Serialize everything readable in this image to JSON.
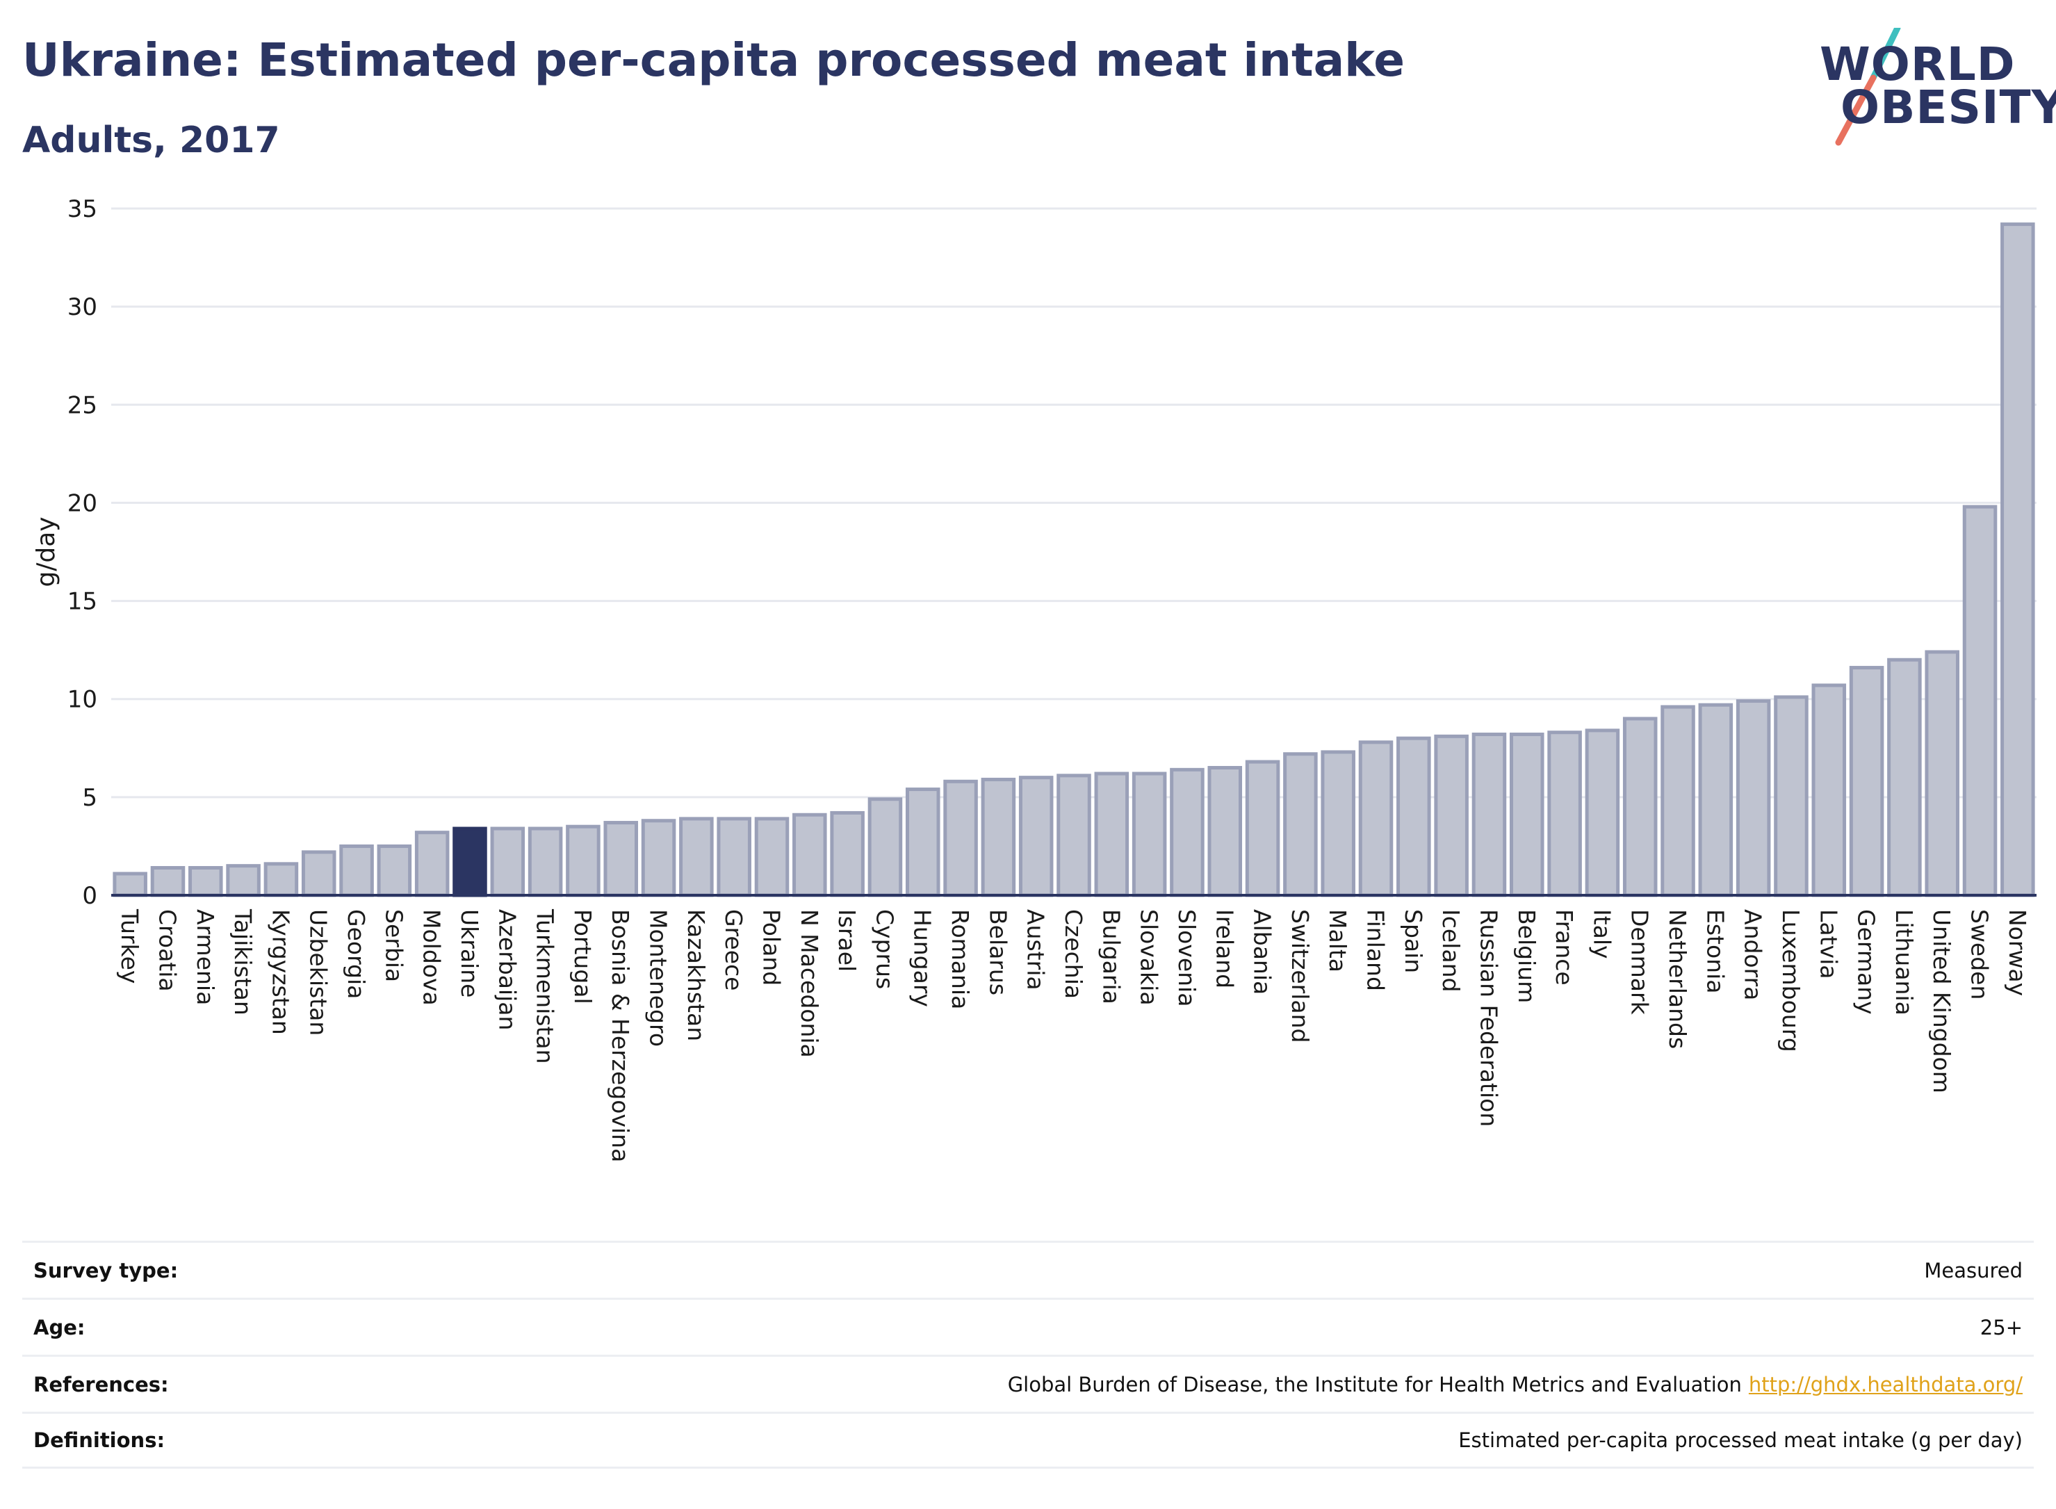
{
  "header": {
    "title": "Ukraine: Estimated per-capita processed meat intake",
    "subtitle": "Adults, 2017"
  },
  "logo": {
    "line1": "WORLD",
    "line2": "OBESITY",
    "slash_colors": [
      "#3fbfbf",
      "#e8715f"
    ]
  },
  "colors": {
    "highlight": "#2b3562",
    "bar": "#bfc3d0",
    "bar_border": "#9aa0b8",
    "grid": "#e6e8ee"
  },
  "chart_data": {
    "type": "bar",
    "ylabel": "g/day",
    "xlabel": "",
    "ylim": [
      0,
      35
    ],
    "yticks": [
      0,
      5,
      10,
      15,
      20,
      25,
      30,
      35
    ],
    "grid": true,
    "highlight": "Ukraine",
    "categories": [
      "Turkey",
      "Croatia",
      "Armenia",
      "Tajikistan",
      "Kyrgyzstan",
      "Uzbekistan",
      "Georgia",
      "Serbia",
      "Moldova",
      "Ukraine",
      "Azerbaijan",
      "Turkmenistan",
      "Portugal",
      "Bosnia & Herzegovina",
      "Montenegro",
      "Kazakhstan",
      "Greece",
      "Poland",
      "N Macedonia",
      "Israel",
      "Cyprus",
      "Hungary",
      "Romania",
      "Belarus",
      "Austria",
      "Czechia",
      "Bulgaria",
      "Slovakia",
      "Slovenia",
      "Ireland",
      "Albania",
      "Switzerland",
      "Malta",
      "Finland",
      "Spain",
      "Iceland",
      "Russian Federation",
      "Belgium",
      "France",
      "Italy",
      "Denmark",
      "Netherlands",
      "Estonia",
      "Andorra",
      "Luxembourg",
      "Latvia",
      "Germany",
      "Lithuania",
      "United Kingdom",
      "Sweden",
      "Norway"
    ],
    "values": [
      1.1,
      1.4,
      1.4,
      1.5,
      1.6,
      2.2,
      2.5,
      2.5,
      3.2,
      3.4,
      3.4,
      3.4,
      3.5,
      3.7,
      3.8,
      3.9,
      3.9,
      3.9,
      4.1,
      4.2,
      4.9,
      5.4,
      5.8,
      5.9,
      6.0,
      6.1,
      6.2,
      6.2,
      6.4,
      6.5,
      6.8,
      7.2,
      7.3,
      7.8,
      8.0,
      8.1,
      8.2,
      8.2,
      8.3,
      8.4,
      9.0,
      9.6,
      9.7,
      9.9,
      10.1,
      10.7,
      11.6,
      12.0,
      12.4,
      19.8,
      34.2
    ]
  },
  "info": {
    "survey_type_label": "Survey type:",
    "survey_type_value": "Measured",
    "age_label": "Age:",
    "age_value": "25+",
    "references_label": "References:",
    "references_value": "Global Burden of Disease, the Institute for Health Metrics and Evaluation",
    "references_link": "http://ghdx.healthdata.org/",
    "definitions_label": "Definitions:",
    "definitions_value": "Estimated per-capita processed meat intake (g per day)"
  }
}
